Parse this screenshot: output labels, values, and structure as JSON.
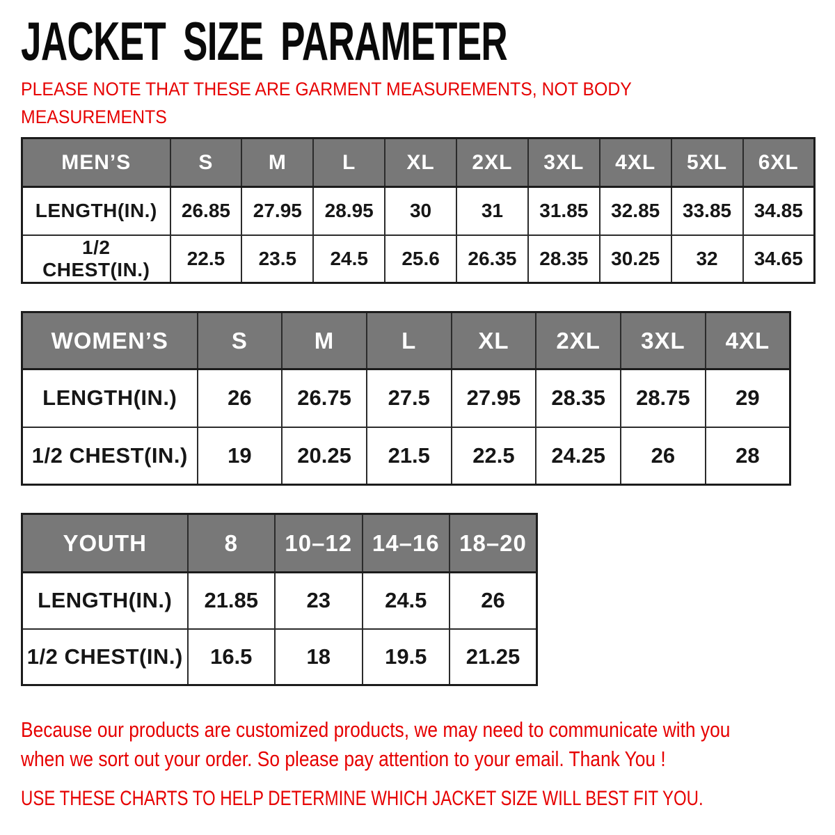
{
  "page_title": "JACKET SIZE PARAMETER",
  "note_lines": [
    "PLEASE NOTE THAT THESE ARE GARMENT MEASUREMENTS, NOT BODY",
    "MEASUREMENTS"
  ],
  "footer": {
    "notice_lines": [
      "Because our products are customized products, we may need to communicate with you",
      "when we sort out your order. So please pay attention to your email. Thank You !"
    ],
    "advice": "USE THESE CHARTS TO HELP DETERMINE WHICH JACKET SIZE WILL BEST FIT YOU."
  },
  "colors": {
    "accent_red": "#e60000",
    "header_gray": "#787878",
    "border_dark": "#1c1c1c",
    "header_text": "#ffffff",
    "body_text": "#111111",
    "background": "#ffffff"
  },
  "chart_data": [
    {
      "type": "table",
      "group_label": "MEN’S",
      "size_headers": [
        "S",
        "M",
        "L",
        "XL",
        "2XL",
        "3XL",
        "4XL",
        "5XL",
        "6XL"
      ],
      "rows": [
        {
          "label": "LENGTH(IN.)",
          "values": [
            26.85,
            27.95,
            28.95,
            30,
            31,
            31.85,
            32.85,
            33.85,
            34.85
          ]
        },
        {
          "label": "1/2 CHEST(IN.)",
          "values": [
            22.5,
            23.5,
            24.5,
            25.6,
            26.35,
            28.35,
            30.25,
            32,
            34.65
          ]
        }
      ]
    },
    {
      "type": "table",
      "group_label": "WOMEN’S",
      "size_headers": [
        "S",
        "M",
        "L",
        "XL",
        "2XL",
        "3XL",
        "4XL"
      ],
      "rows": [
        {
          "label": "LENGTH(IN.)",
          "values": [
            26,
            26.75,
            27.5,
            27.95,
            28.35,
            28.75,
            29
          ]
        },
        {
          "label": "1/2 CHEST(IN.)",
          "values": [
            19,
            20.25,
            21.5,
            22.5,
            24.25,
            26,
            28
          ]
        }
      ]
    },
    {
      "type": "table",
      "group_label": "YOUTH",
      "size_headers": [
        "8",
        "10–12",
        "14–16",
        "18–20"
      ],
      "rows": [
        {
          "label": "LENGTH(IN.)",
          "values": [
            21.85,
            23,
            24.5,
            26
          ]
        },
        {
          "label": "1/2 CHEST(IN.)",
          "values": [
            16.5,
            18,
            19.5,
            21.25
          ]
        }
      ]
    }
  ]
}
